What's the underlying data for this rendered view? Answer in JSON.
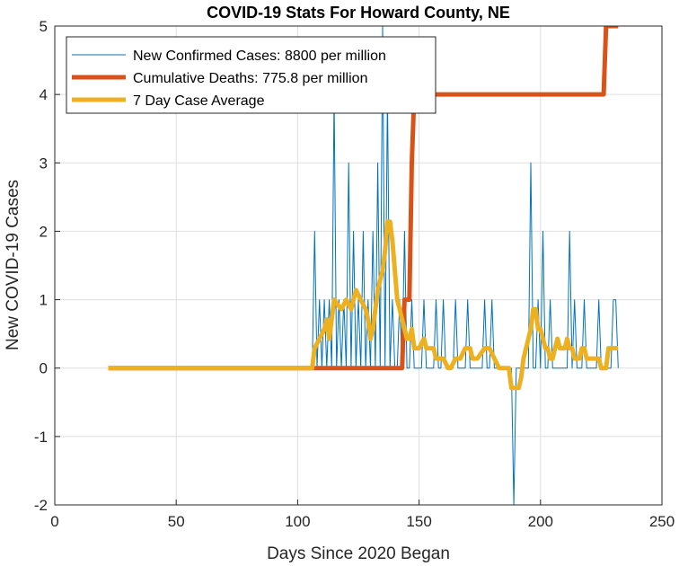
{
  "chart_data": {
    "type": "line",
    "title": "COVID-19 Stats For Howard County, NE",
    "xlabel": "Days Since 2020 Began",
    "ylabel": "New COVID-19 Cases",
    "xlim": [
      0,
      250
    ],
    "ylim": [
      -2,
      5
    ],
    "xticks": [
      0,
      50,
      100,
      150,
      200,
      250
    ],
    "yticks": [
      -2,
      -1,
      0,
      1,
      2,
      3,
      4,
      5
    ],
    "grid": true,
    "legend_position": "top-left",
    "series": [
      {
        "name": "New Confirmed Cases: 8800 per million",
        "color": "#0072BD",
        "x": [
          22,
          106,
          107,
          108,
          109,
          110,
          111,
          112,
          113,
          114,
          115,
          116,
          117,
          118,
          119,
          120,
          121,
          122,
          123,
          124,
          125,
          126,
          127,
          128,
          129,
          130,
          131,
          132,
          133,
          134,
          135,
          136,
          137,
          138,
          139,
          140,
          141,
          142,
          143,
          144,
          145,
          146,
          147,
          148,
          149,
          150,
          151,
          152,
          153,
          154,
          155,
          156,
          157,
          158,
          159,
          160,
          161,
          162,
          163,
          164,
          165,
          166,
          167,
          168,
          169,
          170,
          171,
          172,
          173,
          174,
          175,
          176,
          177,
          178,
          179,
          180,
          181,
          182,
          183,
          184,
          185,
          186,
          187,
          188,
          189,
          190,
          191,
          192,
          193,
          194,
          195,
          196,
          197,
          198,
          199,
          200,
          201,
          202,
          203,
          204,
          205,
          206,
          207,
          208,
          209,
          210,
          211,
          212,
          213,
          214,
          215,
          216,
          217,
          218,
          219,
          220,
          221,
          222,
          223,
          224,
          225,
          226,
          227,
          228,
          229,
          230,
          231,
          232
        ],
        "values": [
          0,
          0,
          2,
          0,
          1,
          0,
          1,
          0,
          1,
          0,
          4,
          0,
          1,
          0,
          1,
          0,
          3,
          0,
          2,
          0,
          1,
          0,
          2,
          0,
          1,
          0,
          2,
          0,
          3,
          0,
          5,
          0,
          4,
          0,
          1,
          0,
          0,
          1,
          0,
          2,
          0,
          0,
          1,
          0,
          0,
          0,
          0,
          1,
          0,
          0,
          0,
          0,
          1,
          0,
          0,
          1,
          0,
          0,
          0,
          0,
          1,
          0,
          0,
          0,
          0,
          1,
          0,
          0,
          0,
          0,
          0,
          0,
          1,
          0,
          0,
          1,
          0,
          0,
          0,
          0,
          0,
          0,
          0,
          0,
          -2,
          0,
          0,
          0,
          0,
          0,
          0,
          3,
          0,
          0,
          1,
          0,
          2,
          0,
          0,
          1,
          0,
          0,
          0,
          0,
          0,
          0,
          0,
          2,
          0,
          1,
          0,
          0,
          0,
          1,
          0,
          0,
          0,
          0,
          0,
          1,
          0,
          0,
          0,
          0,
          0,
          1,
          1,
          0
        ]
      },
      {
        "name": "Cumulative Deaths: 775.8 per million",
        "color": "#D95319",
        "x": [
          22,
          106,
          143,
          144,
          145,
          146,
          147,
          148,
          149,
          150,
          226,
          227,
          232
        ],
        "values": [
          0,
          0,
          0,
          1,
          1,
          1,
          3,
          4,
          4,
          4,
          4,
          5,
          5
        ]
      },
      {
        "name": "7 Day Case Average",
        "color": "#EDB120",
        "x": [
          22,
          106,
          107,
          109,
          111,
          112,
          113,
          114,
          115,
          118,
          120,
          122,
          123,
          124,
          126,
          128,
          129,
          130,
          131,
          132,
          133,
          134,
          135,
          136,
          137,
          138,
          139,
          140,
          141,
          142,
          143,
          144,
          145,
          146,
          147,
          148,
          150,
          152,
          153,
          156,
          157,
          158,
          160,
          162,
          163,
          165,
          166,
          167,
          169,
          170,
          171,
          172,
          173,
          174,
          177,
          179,
          181,
          183,
          185,
          186,
          187,
          188,
          189,
          190,
          191,
          192,
          193,
          195,
          196,
          197,
          198,
          199,
          200,
          202,
          203,
          204,
          205,
          206,
          207,
          208,
          209,
          210,
          211,
          212,
          213,
          214,
          215,
          216,
          217,
          218,
          219,
          220,
          221,
          222,
          224,
          225,
          226,
          227,
          228,
          229,
          230,
          231,
          232
        ],
        "values": [
          0,
          0,
          0.29,
          0.43,
          0.57,
          0.71,
          0.43,
          0.71,
          1.0,
          0.86,
          1.0,
          0.86,
          1.0,
          1.14,
          1.0,
          0.86,
          0.71,
          0.43,
          0.57,
          0.86,
          1.14,
          1.29,
          1.43,
          1.71,
          2.14,
          2.14,
          1.86,
          1.43,
          1.0,
          0.86,
          0.71,
          0.57,
          0.43,
          0.43,
          0.57,
          0.29,
          0.29,
          0.43,
          0.29,
          0.29,
          0.14,
          0.14,
          0.14,
          0.0,
          0.0,
          0.14,
          0.14,
          0.14,
          0.29,
          0.29,
          0.29,
          0.14,
          0.14,
          0.14,
          0.29,
          0.29,
          0.14,
          0.0,
          0.0,
          0.0,
          0.0,
          -0.29,
          -0.29,
          -0.29,
          -0.29,
          -0.14,
          0.14,
          0.43,
          0.57,
          0.86,
          0.86,
          0.57,
          0.57,
          0.29,
          0.29,
          0.14,
          0.14,
          0.29,
          0.43,
          0.29,
          0.29,
          0.29,
          0.43,
          0.29,
          0.29,
          0.14,
          0.14,
          0.14,
          0.29,
          0.29,
          0.14,
          0.14,
          0.14,
          0.14,
          0.14,
          0.0,
          0.0,
          0.0,
          0.29,
          0.29,
          0.29,
          0.29,
          0.29
        ]
      }
    ]
  }
}
